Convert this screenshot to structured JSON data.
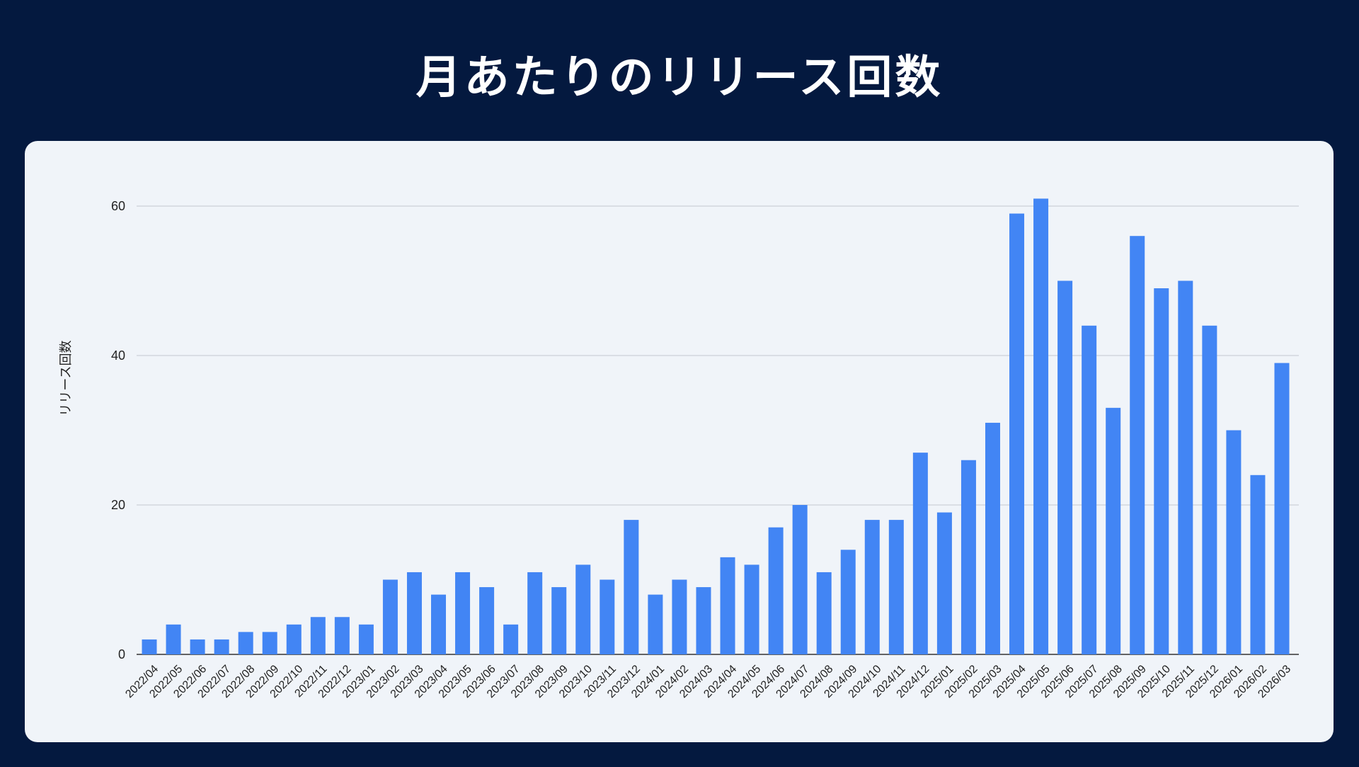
{
  "header": {
    "title": "月あたりのリリース回数"
  },
  "colors": {
    "background": "#04193f",
    "card": "#f0f4f9",
    "bar": "#4285f4",
    "grid": "#c5c9cf",
    "baseline": "#333333"
  },
  "chart_data": {
    "type": "bar",
    "title": "",
    "xlabel": "",
    "ylabel": "リリース回数",
    "ylim": [
      0,
      60
    ],
    "yticks": [
      0,
      20,
      40,
      60
    ],
    "grid": true,
    "legend": "none",
    "categories": [
      "2022/04",
      "2022/05",
      "2022/06",
      "2022/07",
      "2022/08",
      "2022/09",
      "2022/10",
      "2022/11",
      "2022/12",
      "2023/01",
      "2023/02",
      "2023/03",
      "2023/04",
      "2023/05",
      "2023/06",
      "2023/07",
      "2023/08",
      "2023/09",
      "2023/10",
      "2023/11",
      "2023/12",
      "2024/01",
      "2024/02",
      "2024/03",
      "2024/04",
      "2024/05",
      "2024/06",
      "2024/07",
      "2024/08",
      "2024/09",
      "2024/10",
      "2024/11",
      "2024/12",
      "2025/01",
      "2025/02",
      "2025/03",
      "2025/04",
      "2025/05",
      "2025/06",
      "2025/07",
      "2025/08",
      "2025/09",
      "2025/10",
      "2025/11",
      "2025/12",
      "2026/01",
      "2026/02",
      "2026/03"
    ],
    "values": [
      2,
      4,
      2,
      2,
      3,
      3,
      4,
      5,
      5,
      4,
      10,
      11,
      8,
      11,
      9,
      4,
      11,
      9,
      12,
      10,
      18,
      8,
      10,
      9,
      13,
      12,
      17,
      20,
      11,
      14,
      18,
      18,
      27,
      19,
      26,
      31,
      59,
      61,
      50,
      44,
      33,
      56,
      49,
      50,
      44,
      30,
      24,
      39
    ]
  }
}
